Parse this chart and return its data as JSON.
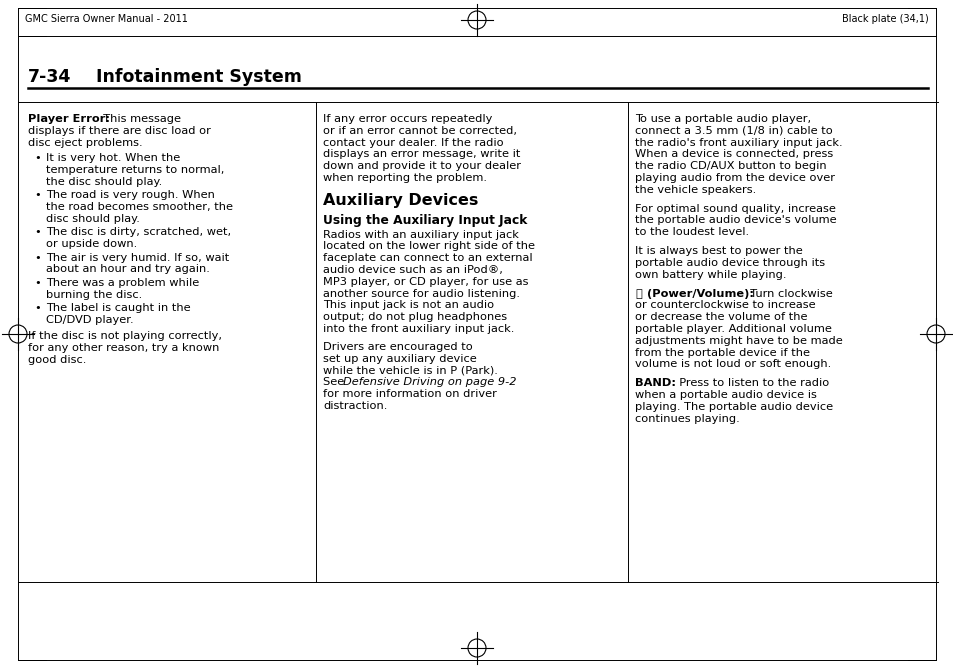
{
  "bg_color": "#ffffff",
  "header_left": "GMC Sierra Owner Manual - 2011",
  "header_right": "Black plate (34,1)",
  "page_title_number": "7-34",
  "page_title_text": "Infotainment System",
  "col1_bullets": [
    [
      "It is very hot. When the",
      "temperature returns to normal,",
      "the disc should play."
    ],
    [
      "The road is very rough. When",
      "the road becomes smoother, the",
      "disc should play."
    ],
    [
      "The disc is dirty, scratched, wet,",
      "or upside down."
    ],
    [
      "The air is very humid. If so, wait",
      "about an hour and try again."
    ],
    [
      "There was a problem while",
      "burning the disc."
    ],
    [
      "The label is caught in the",
      "CD/DVD player."
    ]
  ],
  "col1_footer": [
    "If the disc is not playing correctly,",
    "for any other reason, try a known",
    "good disc."
  ],
  "col2_para1": [
    "If any error occurs repeatedly",
    "or if an error cannot be corrected,",
    "contact your dealer. If the radio",
    "displays an error message, write it",
    "down and provide it to your dealer",
    "when reporting the problem."
  ],
  "col2_para2": [
    "Radios with an auxiliary input jack",
    "located on the lower right side of the",
    "faceplate can connect to an external",
    "audio device such as an iPod®,",
    "MP3 player, or CD player, for use as",
    "another source for audio listening.",
    "This input jack is not an audio",
    "output; do not plug headphones",
    "into the front auxiliary input jack."
  ],
  "col2_para3_normal": [
    "Drivers are encouraged to",
    "set up any auxiliary device",
    "while the vehicle is in P (Park)."
  ],
  "col2_para3_see_normal": "See ",
  "col2_para3_italic": "Defensive Driving on page 9-2",
  "col2_para3_end": [
    "for more information on driver",
    "distraction."
  ],
  "col3_para1": [
    "To use a portable audio player,",
    "connect a 3.5 mm (1/8 in) cable to",
    "the radio's front auxiliary input jack.",
    "When a device is connected, press",
    "the radio CD/AUX button to begin",
    "playing audio from the device over",
    "the vehicle speakers."
  ],
  "col3_para2": [
    "For optimal sound quality, increase",
    "the portable audio device's volume",
    "to the loudest level."
  ],
  "col3_para3": [
    "It is always best to power the",
    "portable audio device through its",
    "own battery while playing."
  ],
  "col3_para4_rest": [
    "or counterclockwise to increase",
    "or decrease the volume of the",
    "portable player. Additional volume",
    "adjustments might have to be made",
    "from the portable device if the",
    "volume is not loud or soft enough."
  ],
  "col3_para5_rest": [
    "when a portable audio device is",
    "playing. The portable audio device",
    "continues playing."
  ]
}
